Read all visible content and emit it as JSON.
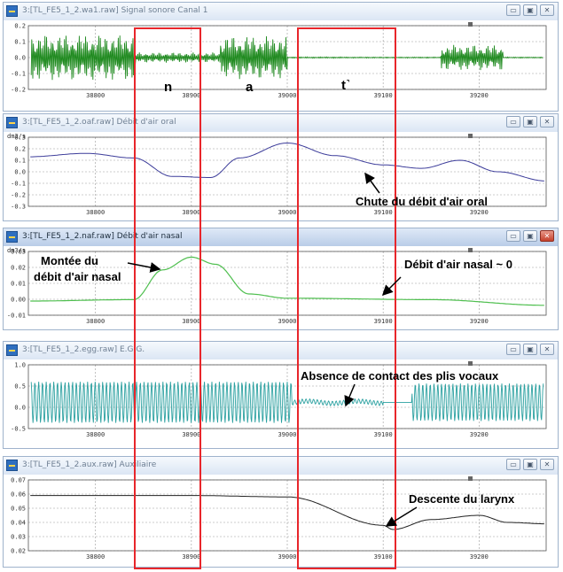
{
  "windows": [
    {
      "id": "w1",
      "title": "3:[TL_FE5_1_2.wa1.raw] Signal sonore Canal 1",
      "unit": "",
      "yticks": [
        "0.2",
        "0.1",
        "0.0",
        "-0.1",
        "-0.2"
      ],
      "xticks": [
        "38800",
        "38900",
        "39000",
        "39100",
        "39200"
      ],
      "active": false
    },
    {
      "id": "w2",
      "title": "3:[TL_FE5_1_2.oaf.raw] Débit d'air oral",
      "unit": "dm3/s",
      "yticks": [
        "0.3",
        "0.2",
        "0.1",
        "0.0",
        "-0.1",
        "-0.2",
        "-0.3"
      ],
      "xticks": [
        "38800",
        "38900",
        "39000",
        "39100",
        "39200"
      ],
      "active": false
    },
    {
      "id": "w3",
      "title": "3:[TL_FE5_1_2.naf.raw] Débit d'air nasal",
      "unit": "dm3/s",
      "yticks": [
        "0.03",
        "0.02",
        "0.01",
        "0.00",
        "-0.01"
      ],
      "xticks": [
        "38800",
        "38900",
        "39000",
        "39100",
        "39200"
      ],
      "active": true
    },
    {
      "id": "w4",
      "title": "3:[TL_FE5_1_2.egg.raw] E.G.G.",
      "unit": "",
      "yticks": [
        "1.0",
        "0.5",
        "0.0",
        "-0.5"
      ],
      "xticks": [
        "38800",
        "38900",
        "39000",
        "39100",
        "39200"
      ],
      "active": false
    },
    {
      "id": "w5",
      "title": "3:[TL_FE5_1_2.aux.raw] Auxiliaire",
      "unit": "",
      "yticks": [
        "0.07",
        "0.06",
        "0.05",
        "0.04",
        "0.03",
        "0.02"
      ],
      "xticks": [
        "38800",
        "38900",
        "39000",
        "39100",
        "39200"
      ],
      "active": false
    }
  ],
  "window_controls": {
    "minimize": "▭",
    "maximize": "▣",
    "close": "✕"
  },
  "segments": {
    "n": "n",
    "a": "a",
    "t": "t˺"
  },
  "annotations": {
    "oral_drop": "Chute du débit d'air oral",
    "nasal_rise_1": "Montée du",
    "nasal_rise_2": "débit d'air nasal",
    "nasal_zero": "Débit d'air nasal ~ 0",
    "no_contact": "Absence de contact des plis vocaux",
    "larynx": "Descente du larynx"
  },
  "colors": {
    "audio": "#1f8a1f",
    "oral": "#3c3c9a",
    "nasal": "#4fbf4f",
    "egg": "#2aa0a0",
    "aux": "#222222",
    "highlight": "#e8262b"
  }
}
